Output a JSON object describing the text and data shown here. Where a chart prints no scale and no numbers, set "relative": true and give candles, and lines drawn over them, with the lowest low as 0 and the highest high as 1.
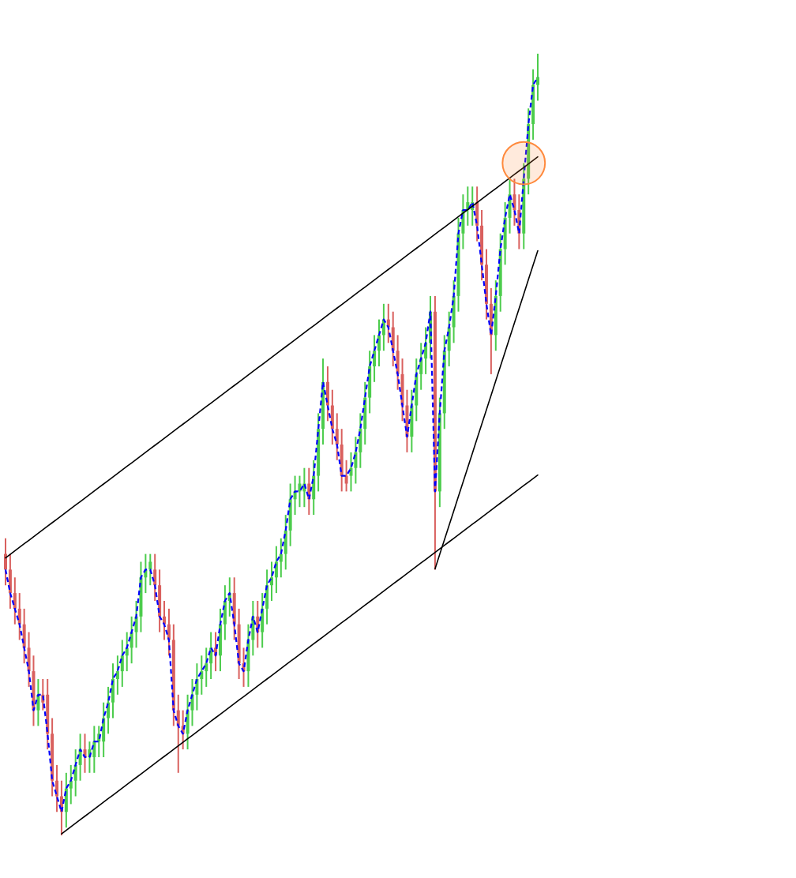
{
  "chart_data": {
    "type": "candlestick",
    "relative": true,
    "categories": [
      null,
      null,
      null,
      null,
      null,
      null,
      null,
      null,
      null,
      null,
      null,
      null,
      null,
      null,
      null,
      null,
      null,
      null,
      null,
      null,
      null,
      null,
      null,
      null,
      null,
      null,
      null,
      null,
      null,
      null,
      null,
      null,
      null,
      null,
      null,
      null,
      null,
      null,
      null,
      null,
      null,
      null,
      null,
      null,
      null,
      null,
      null,
      null,
      null,
      null,
      null,
      null,
      null,
      null,
      null,
      null,
      null,
      null,
      null,
      null,
      null,
      null,
      null,
      null,
      null,
      null,
      null,
      null,
      null,
      null,
      null,
      null,
      null,
      null,
      null,
      null,
      null,
      null,
      null,
      null,
      null,
      null,
      null,
      null,
      null,
      null,
      null,
      null,
      null,
      null,
      null,
      null,
      null,
      null,
      null,
      null,
      null,
      null,
      null,
      null,
      null,
      null,
      null,
      null,
      null,
      null,
      null,
      null,
      null,
      null,
      null,
      null,
      null,
      null,
      null
    ],
    "ohlc": [
      [
        0.36,
        0.38,
        0.32,
        0.34
      ],
      [
        0.34,
        0.36,
        0.29,
        0.31
      ],
      [
        0.31,
        0.33,
        0.27,
        0.29
      ],
      [
        0.29,
        0.31,
        0.25,
        0.27
      ],
      [
        0.27,
        0.29,
        0.22,
        0.24
      ],
      [
        0.24,
        0.26,
        0.19,
        0.21
      ],
      [
        0.21,
        0.23,
        0.14,
        0.16
      ],
      [
        0.16,
        0.2,
        0.14,
        0.18
      ],
      [
        0.18,
        0.2,
        0.16,
        0.17
      ],
      [
        0.18,
        0.2,
        0.11,
        0.13
      ],
      [
        0.13,
        0.15,
        0.05,
        0.07
      ],
      [
        0.07,
        0.09,
        0.03,
        0.05
      ],
      [
        0.05,
        0.07,
        0.0,
        0.03
      ],
      [
        0.03,
        0.08,
        0.01,
        0.06
      ],
      [
        0.06,
        0.09,
        0.04,
        0.07
      ],
      [
        0.07,
        0.11,
        0.05,
        0.09
      ],
      [
        0.09,
        0.13,
        0.07,
        0.11
      ],
      [
        0.11,
        0.13,
        0.08,
        0.1
      ],
      [
        0.1,
        0.12,
        0.08,
        0.11
      ],
      [
        0.1,
        0.14,
        0.08,
        0.12
      ],
      [
        0.12,
        0.14,
        0.1,
        0.13
      ],
      [
        0.12,
        0.17,
        0.1,
        0.15
      ],
      [
        0.15,
        0.19,
        0.13,
        0.17
      ],
      [
        0.17,
        0.22,
        0.15,
        0.2
      ],
      [
        0.2,
        0.23,
        0.18,
        0.21
      ],
      [
        0.21,
        0.25,
        0.19,
        0.23
      ],
      [
        0.23,
        0.26,
        0.21,
        0.24
      ],
      [
        0.24,
        0.28,
        0.22,
        0.26
      ],
      [
        0.26,
        0.3,
        0.24,
        0.28
      ],
      [
        0.28,
        0.35,
        0.26,
        0.33
      ],
      [
        0.33,
        0.36,
        0.31,
        0.34
      ],
      [
        0.34,
        0.36,
        0.32,
        0.35
      ],
      [
        0.34,
        0.36,
        0.3,
        0.32
      ],
      [
        0.32,
        0.34,
        0.26,
        0.28
      ],
      [
        0.28,
        0.3,
        0.25,
        0.27
      ],
      [
        0.27,
        0.29,
        0.23,
        0.25
      ],
      [
        0.25,
        0.27,
        0.14,
        0.16
      ],
      [
        0.16,
        0.18,
        0.08,
        0.14
      ],
      [
        0.14,
        0.16,
        0.11,
        0.13
      ],
      [
        0.13,
        0.18,
        0.11,
        0.16
      ],
      [
        0.16,
        0.2,
        0.14,
        0.18
      ],
      [
        0.18,
        0.22,
        0.16,
        0.2
      ],
      [
        0.2,
        0.23,
        0.18,
        0.21
      ],
      [
        0.21,
        0.24,
        0.19,
        0.22
      ],
      [
        0.22,
        0.26,
        0.2,
        0.24
      ],
      [
        0.24,
        0.26,
        0.21,
        0.23
      ],
      [
        0.23,
        0.29,
        0.21,
        0.27
      ],
      [
        0.27,
        0.32,
        0.25,
        0.3
      ],
      [
        0.3,
        0.33,
        0.28,
        0.31
      ],
      [
        0.31,
        0.33,
        0.25,
        0.27
      ],
      [
        0.27,
        0.29,
        0.2,
        0.22
      ],
      [
        0.22,
        0.24,
        0.19,
        0.21
      ],
      [
        0.21,
        0.27,
        0.19,
        0.25
      ],
      [
        0.25,
        0.3,
        0.23,
        0.28
      ],
      [
        0.28,
        0.3,
        0.24,
        0.26
      ],
      [
        0.26,
        0.31,
        0.24,
        0.29
      ],
      [
        0.29,
        0.34,
        0.27,
        0.32
      ],
      [
        0.32,
        0.35,
        0.3,
        0.33
      ],
      [
        0.33,
        0.37,
        0.31,
        0.35
      ],
      [
        0.35,
        0.38,
        0.33,
        0.36
      ],
      [
        0.36,
        0.41,
        0.34,
        0.39
      ],
      [
        0.39,
        0.45,
        0.37,
        0.43
      ],
      [
        0.43,
        0.46,
        0.41,
        0.44
      ],
      [
        0.44,
        0.46,
        0.42,
        0.45
      ],
      [
        0.44,
        0.47,
        0.42,
        0.45
      ],
      [
        0.45,
        0.47,
        0.41,
        0.43
      ],
      [
        0.43,
        0.48,
        0.41,
        0.46
      ],
      [
        0.46,
        0.54,
        0.44,
        0.52
      ],
      [
        0.52,
        0.61,
        0.5,
        0.58
      ],
      [
        0.58,
        0.6,
        0.53,
        0.55
      ],
      [
        0.55,
        0.57,
        0.5,
        0.52
      ],
      [
        0.52,
        0.54,
        0.48,
        0.5
      ],
      [
        0.5,
        0.52,
        0.44,
        0.46
      ],
      [
        0.46,
        0.48,
        0.44,
        0.45
      ],
      [
        0.46,
        0.49,
        0.44,
        0.47
      ],
      [
        0.47,
        0.51,
        0.45,
        0.49
      ],
      [
        0.49,
        0.54,
        0.47,
        0.52
      ],
      [
        0.52,
        0.58,
        0.5,
        0.56
      ],
      [
        0.56,
        0.62,
        0.54,
        0.6
      ],
      [
        0.6,
        0.64,
        0.58,
        0.62
      ],
      [
        0.62,
        0.66,
        0.6,
        0.64
      ],
      [
        0.64,
        0.68,
        0.62,
        0.66
      ],
      [
        0.66,
        0.68,
        0.63,
        0.65
      ],
      [
        0.65,
        0.67,
        0.6,
        0.62
      ],
      [
        0.62,
        0.64,
        0.57,
        0.59
      ],
      [
        0.59,
        0.61,
        0.53,
        0.55
      ],
      [
        0.55,
        0.57,
        0.49,
        0.51
      ],
      [
        0.51,
        0.57,
        0.49,
        0.55
      ],
      [
        0.55,
        0.61,
        0.53,
        0.59
      ],
      [
        0.59,
        0.63,
        0.57,
        0.61
      ],
      [
        0.61,
        0.65,
        0.59,
        0.63
      ],
      [
        0.63,
        0.69,
        0.61,
        0.67
      ],
      [
        0.67,
        0.69,
        0.34,
        0.44
      ],
      [
        0.44,
        0.56,
        0.42,
        0.54
      ],
      [
        0.54,
        0.64,
        0.52,
        0.62
      ],
      [
        0.62,
        0.67,
        0.6,
        0.65
      ],
      [
        0.65,
        0.71,
        0.63,
        0.69
      ],
      [
        0.69,
        0.79,
        0.67,
        0.77
      ],
      [
        0.77,
        0.82,
        0.75,
        0.8
      ],
      [
        0.8,
        0.83,
        0.78,
        0.81
      ],
      [
        0.8,
        0.83,
        0.78,
        0.81
      ],
      [
        0.81,
        0.83,
        0.76,
        0.78
      ],
      [
        0.78,
        0.8,
        0.71,
        0.73
      ],
      [
        0.73,
        0.75,
        0.66,
        0.68
      ],
      [
        0.68,
        0.7,
        0.59,
        0.64
      ],
      [
        0.64,
        0.71,
        0.62,
        0.69
      ],
      [
        0.69,
        0.77,
        0.67,
        0.75
      ],
      [
        0.75,
        0.81,
        0.73,
        0.79
      ],
      [
        0.79,
        0.84,
        0.77,
        0.82
      ],
      [
        0.82,
        0.84,
        0.78,
        0.8
      ],
      [
        0.8,
        0.82,
        0.75,
        0.77
      ],
      [
        0.77,
        0.86,
        0.75,
        0.84
      ],
      [
        0.84,
        0.93,
        0.82,
        0.91
      ],
      [
        0.91,
        0.98,
        0.89,
        0.96
      ],
      [
        0.96,
        1.0,
        0.94,
        0.97
      ]
    ],
    "series": [
      {
        "type": "line",
        "color": "#0000ff",
        "line_style": "dashed",
        "values": [
          0.34,
          0.31,
          0.29,
          0.27,
          0.24,
          0.21,
          0.16,
          0.18,
          0.18,
          0.13,
          0.07,
          0.05,
          0.03,
          0.06,
          0.07,
          0.09,
          0.11,
          0.1,
          0.1,
          0.12,
          0.12,
          0.15,
          0.17,
          0.2,
          0.21,
          0.23,
          0.24,
          0.26,
          0.28,
          0.33,
          0.34,
          0.34,
          0.32,
          0.28,
          0.27,
          0.25,
          0.16,
          0.14,
          0.13,
          0.16,
          0.18,
          0.2,
          0.21,
          0.22,
          0.24,
          0.23,
          0.27,
          0.3,
          0.31,
          0.27,
          0.22,
          0.21,
          0.25,
          0.28,
          0.26,
          0.29,
          0.32,
          0.33,
          0.35,
          0.36,
          0.39,
          0.43,
          0.44,
          0.44,
          0.45,
          0.43,
          0.46,
          0.52,
          0.58,
          0.55,
          0.52,
          0.5,
          0.46,
          0.46,
          0.47,
          0.49,
          0.52,
          0.56,
          0.6,
          0.62,
          0.64,
          0.66,
          0.65,
          0.62,
          0.59,
          0.55,
          0.51,
          0.55,
          0.59,
          0.61,
          0.63,
          0.67,
          0.44,
          0.54,
          0.62,
          0.65,
          0.69,
          0.77,
          0.8,
          0.8,
          0.81,
          0.78,
          0.73,
          0.68,
          0.64,
          0.69,
          0.75,
          0.79,
          0.82,
          0.8,
          0.77,
          0.84,
          0.91,
          0.96,
          0.97
        ]
      },
      {
        "type": "line",
        "color": "#000000",
        "line_style": "solid",
        "values": [
          0.355,
          0.3595,
          0.364,
          0.3685,
          0.373,
          0.3775,
          0.382,
          0.3865,
          0.391,
          0.3955,
          0.4,
          0.4045,
          0.409,
          0.4135,
          0.418,
          0.4225,
          0.427,
          0.4315,
          0.436,
          0.4405,
          0.445,
          0.4495,
          0.454,
          0.4585,
          0.463,
          0.4675,
          0.472,
          0.4765,
          0.481,
          0.4855,
          0.49,
          0.4945,
          0.499,
          0.5035,
          0.508,
          0.5125,
          0.517,
          0.5215,
          0.526,
          0.5305,
          0.535,
          0.5395,
          0.544,
          0.5485,
          0.553,
          0.5575,
          0.562,
          0.5665,
          0.571,
          0.5755,
          0.58,
          0.5845,
          0.589,
          0.5935,
          0.598,
          0.6025,
          0.607,
          0.6115,
          0.616,
          0.6205,
          0.625,
          0.6295,
          0.634,
          0.6385,
          0.643,
          0.6475,
          0.652,
          0.6565,
          0.661,
          0.6655,
          0.67,
          0.6745,
          0.679,
          0.6835,
          0.688,
          0.6925,
          0.697,
          0.7015,
          0.706,
          0.7105,
          0.715,
          0.7195,
          0.724,
          0.7285,
          0.733,
          0.7375,
          0.742,
          0.7465,
          0.751,
          0.7555,
          0.76,
          0.7645,
          0.769,
          0.7735,
          0.778,
          0.7825,
          0.787,
          0.7915,
          0.796,
          0.8005,
          0.805,
          0.8095,
          0.814,
          0.8185,
          0.823,
          0.8275,
          0.832,
          0.8365,
          0.841,
          0.8455,
          0.85,
          0.8545,
          0.859,
          0.8635,
          0.868
        ]
      },
      {
        "type": "line",
        "color": "#000000",
        "line_style": "solid",
        "values": [
          null,
          null,
          null,
          null,
          null,
          null,
          null,
          null,
          null,
          null,
          null,
          null,
          0.002,
          0.0065,
          0.011,
          0.0155,
          0.02,
          0.0245,
          0.029,
          0.0335,
          0.038,
          0.0425,
          0.047,
          0.0515,
          0.056,
          0.0605,
          0.065,
          0.0695,
          0.074,
          0.0785,
          0.083,
          0.0875,
          0.092,
          0.0965,
          0.101,
          0.1055,
          0.11,
          0.1145,
          0.119,
          0.1235,
          0.128,
          0.1325,
          0.137,
          0.1415,
          0.146,
          0.1505,
          0.155,
          0.1595,
          0.164,
          0.1685,
          0.173,
          0.1775,
          0.182,
          0.1865,
          0.191,
          0.1955,
          0.2,
          0.2045,
          0.209,
          0.2135,
          0.218,
          0.2225,
          0.227,
          0.2315,
          0.236,
          0.2405,
          0.245,
          0.2495,
          0.254,
          0.2585,
          0.263,
          0.2675,
          0.272,
          0.2765,
          0.281,
          0.2855,
          0.29,
          0.2945,
          0.299,
          0.3035,
          0.308,
          0.3125,
          0.317,
          0.3215,
          0.326,
          0.3305,
          0.335,
          0.3395,
          0.344,
          0.3485,
          0.353,
          0.3575,
          0.362,
          0.3665,
          0.371,
          0.3755,
          0.38,
          0.3845,
          0.389,
          0.3935,
          0.398,
          0.4025,
          0.407,
          0.4115,
          0.416,
          0.4205,
          0.425,
          0.4295,
          0.434,
          0.4385,
          0.443,
          0.4475,
          0.452,
          0.4565,
          0.461
        ]
      },
      {
        "type": "line",
        "color": "#000000",
        "line_style": "solid",
        "values": [
          null,
          null,
          null,
          null,
          null,
          null,
          null,
          null,
          null,
          null,
          null,
          null,
          null,
          null,
          null,
          null,
          null,
          null,
          null,
          null,
          null,
          null,
          null,
          null,
          null,
          null,
          null,
          null,
          null,
          null,
          null,
          null,
          null,
          null,
          null,
          null,
          null,
          null,
          null,
          null,
          null,
          null,
          null,
          null,
          null,
          null,
          null,
          null,
          null,
          null,
          null,
          null,
          null,
          null,
          null,
          null,
          null,
          null,
          null,
          null,
          null,
          null,
          null,
          null,
          null,
          null,
          null,
          null,
          null,
          null,
          null,
          null,
          null,
          null,
          null,
          null,
          null,
          null,
          null,
          null,
          null,
          null,
          null,
          null,
          null,
          null,
          null,
          null,
          null,
          null,
          null,
          null,
          0.341,
          0.3595,
          0.378,
          0.3965,
          0.415,
          0.4335,
          0.452,
          0.4705,
          0.489,
          0.5075,
          0.526,
          0.5445,
          0.563,
          0.5815,
          0.6,
          0.6185,
          0.637,
          0.6555,
          0.674,
          0.6925,
          0.711,
          0.7295,
          0.748
        ]
      },
      {
        "type": "scatter",
        "color": "#ff8a3d",
        "marker": "circle",
        "values": [
          null,
          null,
          null,
          null,
          null,
          null,
          null,
          null,
          null,
          null,
          null,
          null,
          null,
          null,
          null,
          null,
          null,
          null,
          null,
          null,
          null,
          null,
          null,
          null,
          null,
          null,
          null,
          null,
          null,
          null,
          null,
          null,
          null,
          null,
          null,
          null,
          null,
          null,
          null,
          null,
          null,
          null,
          null,
          null,
          null,
          null,
          null,
          null,
          null,
          null,
          null,
          null,
          null,
          null,
          null,
          null,
          null,
          null,
          null,
          null,
          null,
          null,
          null,
          null,
          null,
          null,
          null,
          null,
          null,
          null,
          null,
          null,
          null,
          null,
          null,
          null,
          null,
          null,
          null,
          null,
          null,
          null,
          null,
          null,
          null,
          null,
          null,
          null,
          null,
          null,
          null,
          null,
          null,
          null,
          null,
          null,
          null,
          null,
          null,
          null,
          null,
          null,
          null,
          null,
          null,
          null,
          null,
          null,
          null,
          null,
          null,
          0.86,
          null,
          null,
          null
        ]
      }
    ]
  }
}
